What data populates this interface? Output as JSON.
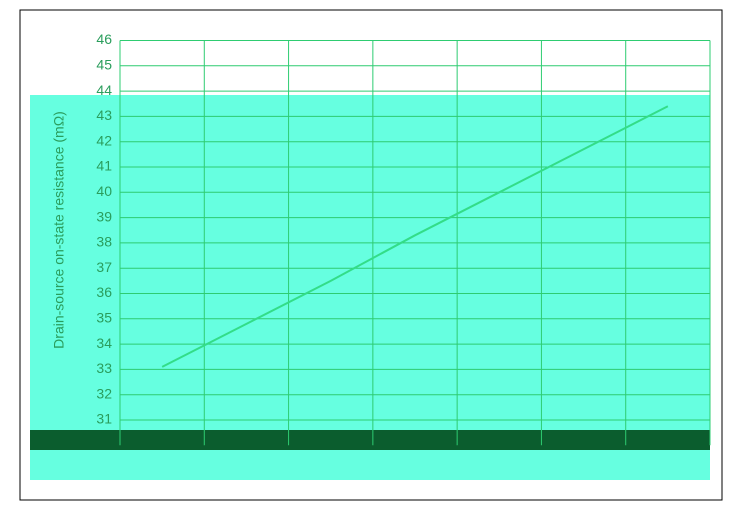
{
  "chart_data": {
    "type": "line",
    "y_label": "Drain-source on-state resistance (mΩ)",
    "categories": [
      null,
      null,
      null,
      null,
      null,
      null,
      null
    ],
    "series": [
      {
        "name": null,
        "color": "#33dd88",
        "values": [
          33.1,
          34.8,
          36.5,
          38.3,
          40.0,
          41.7,
          43.4
        ]
      }
    ],
    "ylim": [
      30,
      46
    ],
    "yticks": [
      31,
      32,
      33,
      34,
      35,
      36,
      37,
      38,
      39,
      40,
      41,
      42,
      43,
      44,
      45,
      46
    ],
    "grid": true
  }
}
